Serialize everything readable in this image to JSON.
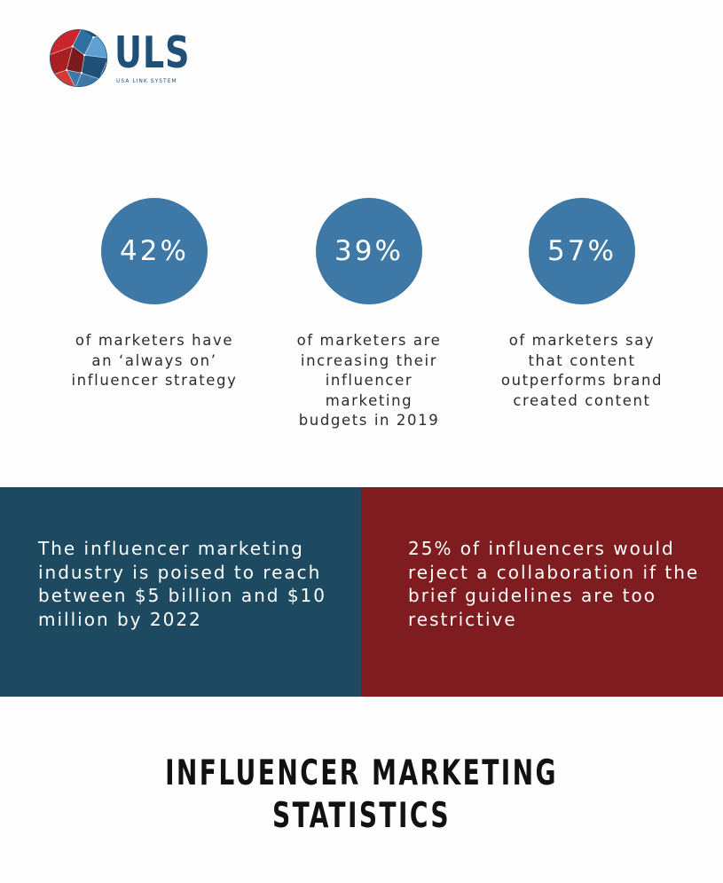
{
  "logo": {
    "mark": "ULS",
    "tagline": "USA LINK SYSTEM",
    "colors": {
      "red": "#c8262a",
      "blue": "#1f5078",
      "light_blue": "#5ea0d0"
    }
  },
  "stats": [
    {
      "value": "42%",
      "description": "of marketers have an ‘always on’ influencer strategy"
    },
    {
      "value": "39%",
      "description": "of marketers are increasing their influencer marketing budgets in 2019"
    },
    {
      "value": "57%",
      "description": "of marketers say that content outperforms brand created content"
    }
  ],
  "panels": {
    "left": {
      "text": "The influencer marketing industry is poised to reach between $5 billion and $10 million by 2022",
      "color": "#1d4a61"
    },
    "right": {
      "text": "25% of influencers would reject a collaboration if the brief guidelines are too restrictive",
      "color": "#7e1c1f"
    }
  },
  "title": {
    "line1": "INFLUENCER MARKETING",
    "line2": "STATISTICS"
  },
  "colors": {
    "circle": "#3d78a6",
    "text": "#2c2c2c"
  }
}
